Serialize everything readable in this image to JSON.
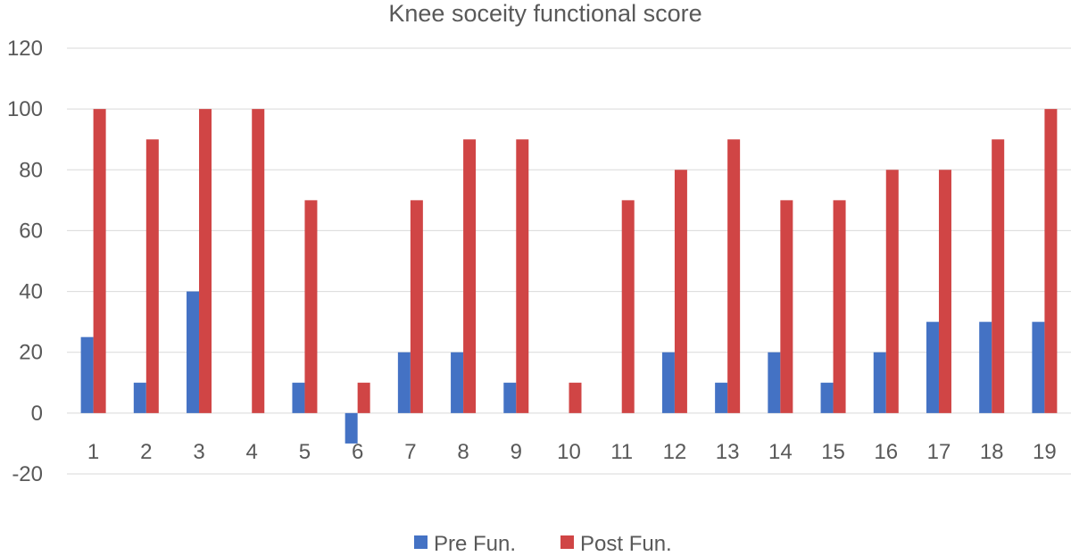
{
  "chart_data": {
    "type": "bar",
    "title": "Knee soceity functional score",
    "xlabel": "",
    "ylabel": "",
    "categories": [
      "1",
      "2",
      "3",
      "4",
      "5",
      "6",
      "7",
      "8",
      "9",
      "10",
      "11",
      "12",
      "13",
      "14",
      "15",
      "16",
      "17",
      "18",
      "19"
    ],
    "series": [
      {
        "name": "Pre Fun.",
        "color": "#4472c4",
        "values": [
          25,
          10,
          40,
          0,
          10,
          -10,
          20,
          20,
          10,
          0,
          0,
          20,
          10,
          20,
          10,
          20,
          30,
          30,
          30
        ]
      },
      {
        "name": "Post Fun.",
        "color": "#d04545",
        "values": [
          100,
          90,
          100,
          100,
          70,
          10,
          70,
          90,
          90,
          10,
          70,
          80,
          90,
          70,
          70,
          80,
          80,
          90,
          100
        ]
      }
    ],
    "ylim": [
      -20,
      120
    ],
    "yticks": [
      -20,
      0,
      20,
      40,
      60,
      80,
      100,
      120
    ],
    "grid": true,
    "legend": "bottom"
  }
}
